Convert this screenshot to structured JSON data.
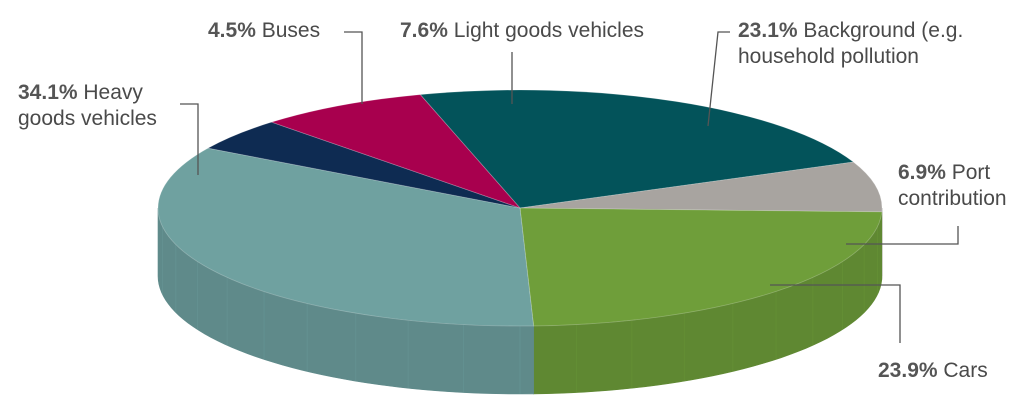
{
  "chart_data": {
    "type": "pie",
    "title": "",
    "style": "3d-exploded-none",
    "slices": [
      {
        "pct_label": "23.1%",
        "label": "Background (e.g.",
        "label_line2": "household pollution",
        "value": 23.1,
        "color": "#03535a"
      },
      {
        "pct_label": "6.9%",
        "label": "Port",
        "label_line2": "contribution",
        "value": 6.9,
        "color": "#a8a4a0"
      },
      {
        "pct_label": "23.9%",
        "label": "Cars",
        "label_line2": "",
        "value": 23.9,
        "color": "#6f9e3a"
      },
      {
        "pct_label": "34.1%",
        "label": "Heavy",
        "label_line2": "goods vehicles",
        "value": 34.1,
        "color": "#6fa1a0"
      },
      {
        "pct_label": "4.5%",
        "label": "Buses",
        "label_line2": "",
        "value": 4.5,
        "color": "#0e2b52"
      },
      {
        "pct_label": "7.6%",
        "label": "Light goods vehicles",
        "label_line2": "",
        "value": 7.6,
        "color": "#a8004e"
      }
    ]
  }
}
